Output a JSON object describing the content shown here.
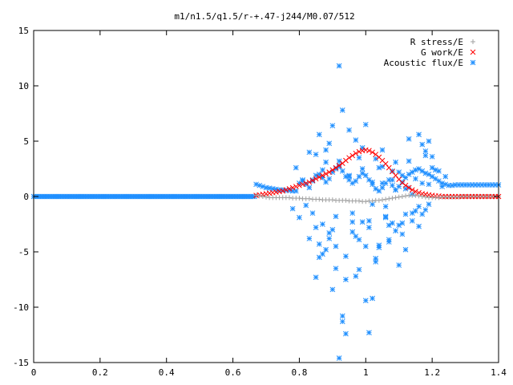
{
  "chart_data": {
    "type": "scatter",
    "title": "m1/n1.5/q1.5/r-+.47-j244/M0.07/512",
    "xlabel": "",
    "ylabel": "",
    "xlim": [
      0,
      1.4
    ],
    "ylim": [
      -15,
      15
    ],
    "x_ticks": [
      "0",
      "0.2",
      "0.4",
      "0.6",
      "0.8",
      "1",
      "1.2",
      "1.4"
    ],
    "y_ticks": [
      "15",
      "10",
      "5",
      "0",
      "-5",
      "-10",
      "-15"
    ],
    "legend_position": "top-right",
    "grid": false,
    "series": [
      {
        "name": "R stress/E",
        "marker": "plus",
        "color": "#a0a0a0",
        "x": [
          0.67,
          0.68,
          0.69,
          0.7,
          0.71,
          0.72,
          0.73,
          0.74,
          0.75,
          0.76,
          0.77,
          0.78,
          0.79,
          0.8,
          0.81,
          0.82,
          0.83,
          0.84,
          0.85,
          0.86,
          0.87,
          0.88,
          0.89,
          0.9,
          0.91,
          0.92,
          0.93,
          0.94,
          0.95,
          0.96,
          0.97,
          0.98,
          0.99,
          1.0,
          1.01,
          1.02,
          1.03,
          1.04,
          1.05,
          1.06,
          1.07,
          1.08,
          1.09,
          1.1,
          1.11,
          1.12,
          1.13,
          1.14,
          1.15,
          1.16,
          1.17,
          1.18,
          1.19,
          1.2,
          1.21,
          1.22,
          1.23,
          1.24,
          1.25,
          1.26,
          1.27,
          1.28,
          1.29,
          1.3,
          1.31,
          1.32,
          1.33,
          1.34,
          1.35,
          1.36,
          1.37,
          1.38,
          1.39,
          1.4
        ],
        "y": [
          0.1,
          0.05,
          0,
          -0.05,
          -0.1,
          -0.1,
          -0.1,
          -0.1,
          -0.1,
          -0.1,
          -0.1,
          -0.15,
          -0.15,
          -0.15,
          -0.2,
          -0.2,
          -0.2,
          -0.25,
          -0.25,
          -0.25,
          -0.3,
          -0.3,
          -0.3,
          -0.3,
          -0.35,
          -0.35,
          -0.35,
          -0.35,
          -0.4,
          -0.4,
          -0.4,
          -0.4,
          -0.45,
          -0.45,
          -0.4,
          -0.4,
          -0.35,
          -0.35,
          -0.3,
          -0.25,
          -0.2,
          -0.15,
          -0.1,
          -0.05,
          0,
          0.05,
          0.1,
          0.1,
          0.1,
          0.05,
          0,
          -0.05,
          -0.1,
          -0.1,
          -0.1,
          -0.1,
          -0.05,
          -0.05,
          -0.05,
          -0.05,
          -0.05,
          -0.05,
          0,
          0,
          0,
          0,
          0,
          0,
          0,
          0,
          0,
          0,
          0,
          0
        ]
      },
      {
        "name": "G work/E",
        "marker": "cross",
        "color": "#ff0000",
        "x": [
          0.67,
          0.68,
          0.69,
          0.7,
          0.71,
          0.72,
          0.73,
          0.74,
          0.75,
          0.76,
          0.77,
          0.78,
          0.79,
          0.8,
          0.81,
          0.82,
          0.83,
          0.84,
          0.85,
          0.86,
          0.87,
          0.88,
          0.89,
          0.9,
          0.91,
          0.92,
          0.93,
          0.94,
          0.95,
          0.96,
          0.97,
          0.98,
          0.99,
          1.0,
          1.01,
          1.02,
          1.03,
          1.04,
          1.05,
          1.06,
          1.07,
          1.08,
          1.09,
          1.1,
          1.11,
          1.12,
          1.13,
          1.14,
          1.15,
          1.16,
          1.17,
          1.18,
          1.19,
          1.2,
          1.21,
          1.22,
          1.23,
          1.24,
          1.25,
          1.26,
          1.27,
          1.28,
          1.29,
          1.3,
          1.31,
          1.32,
          1.33,
          1.34,
          1.35,
          1.36,
          1.37,
          1.38,
          1.39,
          1.4
        ],
        "y": [
          0.1,
          0.15,
          0.2,
          0.25,
          0.3,
          0.35,
          0.4,
          0.45,
          0.5,
          0.6,
          0.7,
          0.8,
          0.9,
          1.0,
          1.1,
          1.2,
          1.3,
          1.45,
          1.6,
          1.75,
          1.9,
          2.05,
          2.2,
          2.4,
          2.6,
          2.8,
          3.0,
          3.25,
          3.5,
          3.7,
          3.9,
          4.05,
          4.15,
          4.2,
          4.15,
          4.0,
          3.8,
          3.55,
          3.25,
          2.95,
          2.6,
          2.25,
          1.9,
          1.55,
          1.25,
          1.0,
          0.8,
          0.6,
          0.45,
          0.35,
          0.25,
          0.2,
          0.15,
          0.1,
          0.05,
          0.05,
          0,
          0,
          0,
          0,
          0,
          0,
          0,
          0,
          0,
          0,
          0,
          0,
          0,
          0,
          0,
          0,
          0,
          0
        ]
      },
      {
        "name": "Acoustic flux/E",
        "marker": "star",
        "color": "#1f8fff",
        "baseline": {
          "x_start": 0.0,
          "x_end": 0.67,
          "step": 0.005,
          "y": 0
        },
        "x": [
          0.67,
          0.68,
          0.69,
          0.7,
          0.71,
          0.72,
          0.73,
          0.74,
          0.75,
          0.76,
          0.77,
          0.78,
          0.79,
          0.8,
          0.81,
          0.82,
          0.83,
          0.84,
          0.85,
          0.86,
          0.87,
          0.88,
          0.89,
          0.9,
          0.91,
          0.92,
          0.93,
          0.94,
          0.95,
          0.96,
          0.97,
          0.98,
          0.99,
          1.0,
          1.01,
          1.02,
          1.03,
          1.04,
          1.05,
          1.06,
          1.07,
          1.08,
          1.09,
          1.1,
          1.11,
          1.12,
          1.13,
          1.14,
          1.15,
          1.16,
          1.17,
          1.18,
          1.19,
          1.2,
          1.21,
          1.22,
          1.23,
          1.24,
          1.25,
          1.26,
          1.27,
          1.28,
          1.29,
          1.3,
          1.31,
          1.32,
          1.33,
          1.34,
          1.35,
          1.36,
          1.37,
          1.38,
          1.39,
          1.4,
          0.82,
          0.83,
          0.84,
          0.85,
          0.86,
          0.87,
          0.88,
          0.89,
          0.9,
          0.91,
          0.92,
          0.93,
          0.94,
          0.95,
          0.96,
          0.97,
          0.98,
          0.99,
          1.0,
          1.01,
          1.02,
          1.03,
          1.04,
          1.05,
          1.06,
          1.07,
          1.08,
          1.09,
          1.1,
          1.11,
          1.12,
          1.13,
          1.14,
          1.15,
          1.16,
          1.17,
          1.18,
          1.19,
          1.2,
          1.21,
          0.83,
          0.85,
          0.87,
          0.89,
          0.91,
          0.92,
          0.93,
          0.95,
          0.97,
          0.99,
          1.01,
          1.03,
          1.05,
          1.07,
          1.09,
          1.11,
          1.13,
          1.15,
          1.17,
          1.19,
          0.84,
          0.86,
          0.88,
          0.9,
          0.92,
          0.94,
          0.96,
          0.98,
          1.0,
          1.02,
          1.04,
          1.06,
          1.08,
          1.1,
          1.12,
          1.14,
          1.16,
          1.18,
          1.2,
          1.22,
          0.8,
          0.81,
          0.85,
          0.87,
          0.89,
          0.91,
          0.93,
          0.95,
          0.97,
          0.99,
          1.01,
          1.03,
          1.05,
          1.07,
          1.09,
          1.11,
          1.13,
          1.17,
          1.19,
          1.23,
          0.78,
          0.79,
          0.86,
          0.88,
          0.9,
          0.92,
          0.94,
          0.96,
          0.98,
          1.0,
          1.02,
          1.04,
          1.06,
          1.08,
          1.1,
          1.12,
          1.14,
          1.16,
          1.18,
          1.24
        ],
        "y": [
          1.1,
          1.0,
          0.9,
          0.8,
          0.75,
          0.7,
          0.65,
          0.6,
          0.6,
          0.55,
          0.55,
          0.5,
          0.5,
          1.2,
          1.5,
          1.1,
          0.8,
          1.4,
          1.9,
          2.0,
          1.7,
          1.3,
          1.6,
          2.2,
          2.5,
          2.7,
          2.3,
          1.8,
          1.5,
          1.2,
          1.4,
          1.8,
          2.1,
          1.9,
          1.5,
          1.1,
          0.7,
          0.5,
          0.8,
          1.2,
          1.5,
          1.0,
          0.6,
          0.9,
          1.3,
          1.7,
          2.0,
          2.2,
          2.4,
          2.5,
          2.3,
          2.1,
          2.0,
          1.8,
          1.6,
          1.4,
          1.2,
          1.1,
          1.0,
          1.0,
          1.05,
          1.05,
          1.05,
          1.05,
          1.05,
          1.05,
          1.05,
          1.05,
          1.05,
          1.05,
          1.05,
          1.05,
          1.05,
          1.05,
          -0.8,
          4.0,
          -1.5,
          3.8,
          5.6,
          -2.5,
          4.2,
          -3.8,
          6.4,
          -4.5,
          11.8,
          7.8,
          -5.4,
          6.0,
          -3.2,
          5.1,
          -6.6,
          4.4,
          6.5,
          -2.8,
          -9.2,
          3.4,
          -4.6,
          2.7,
          -1.9,
          -3.9,
          1.5,
          3.1,
          2.2,
          -3.4,
          -1.6,
          5.2,
          -2.2,
          1.6,
          -0.9,
          1.2,
          3.7,
          -0.7,
          2.6,
          2.4,
          -3.8,
          -2.8,
          -5.2,
          4.8,
          -1.8,
          3.2,
          -10.8,
          1.9,
          -7.2,
          2.5,
          -2.2,
          -5.6,
          1.2,
          -4.1,
          0.6,
          -2.4,
          3.2,
          -1.3,
          4.7,
          1.1,
          1.5,
          -4.3,
          3.1,
          -8.4,
          -14.6,
          -12.4,
          -1.5,
          3.5,
          -9.4,
          1.3,
          -4.4,
          -0.9,
          2.3,
          -2.6,
          -4.8,
          0.2,
          5.6,
          -1.2,
          3.6,
          2.3,
          -1.9,
          1.4,
          -7.3,
          2.4,
          -3.3,
          -6.5,
          -11.3,
          1.8,
          -3.6,
          -2.3,
          -12.3,
          -5.9,
          4.2,
          -2.6,
          -3.1,
          1.9,
          0.8,
          -1.6,
          5.0,
          0.9,
          -1.1,
          2.6,
          -5.5,
          -4.8,
          -3.0,
          2.8,
          -7.5,
          -2.3,
          -3.9,
          -4.5,
          -0.7,
          2.6,
          -1.8,
          -2.4,
          -6.2,
          0.7,
          -1.5,
          -2.7,
          4.1,
          1.8
        ]
      }
    ]
  }
}
